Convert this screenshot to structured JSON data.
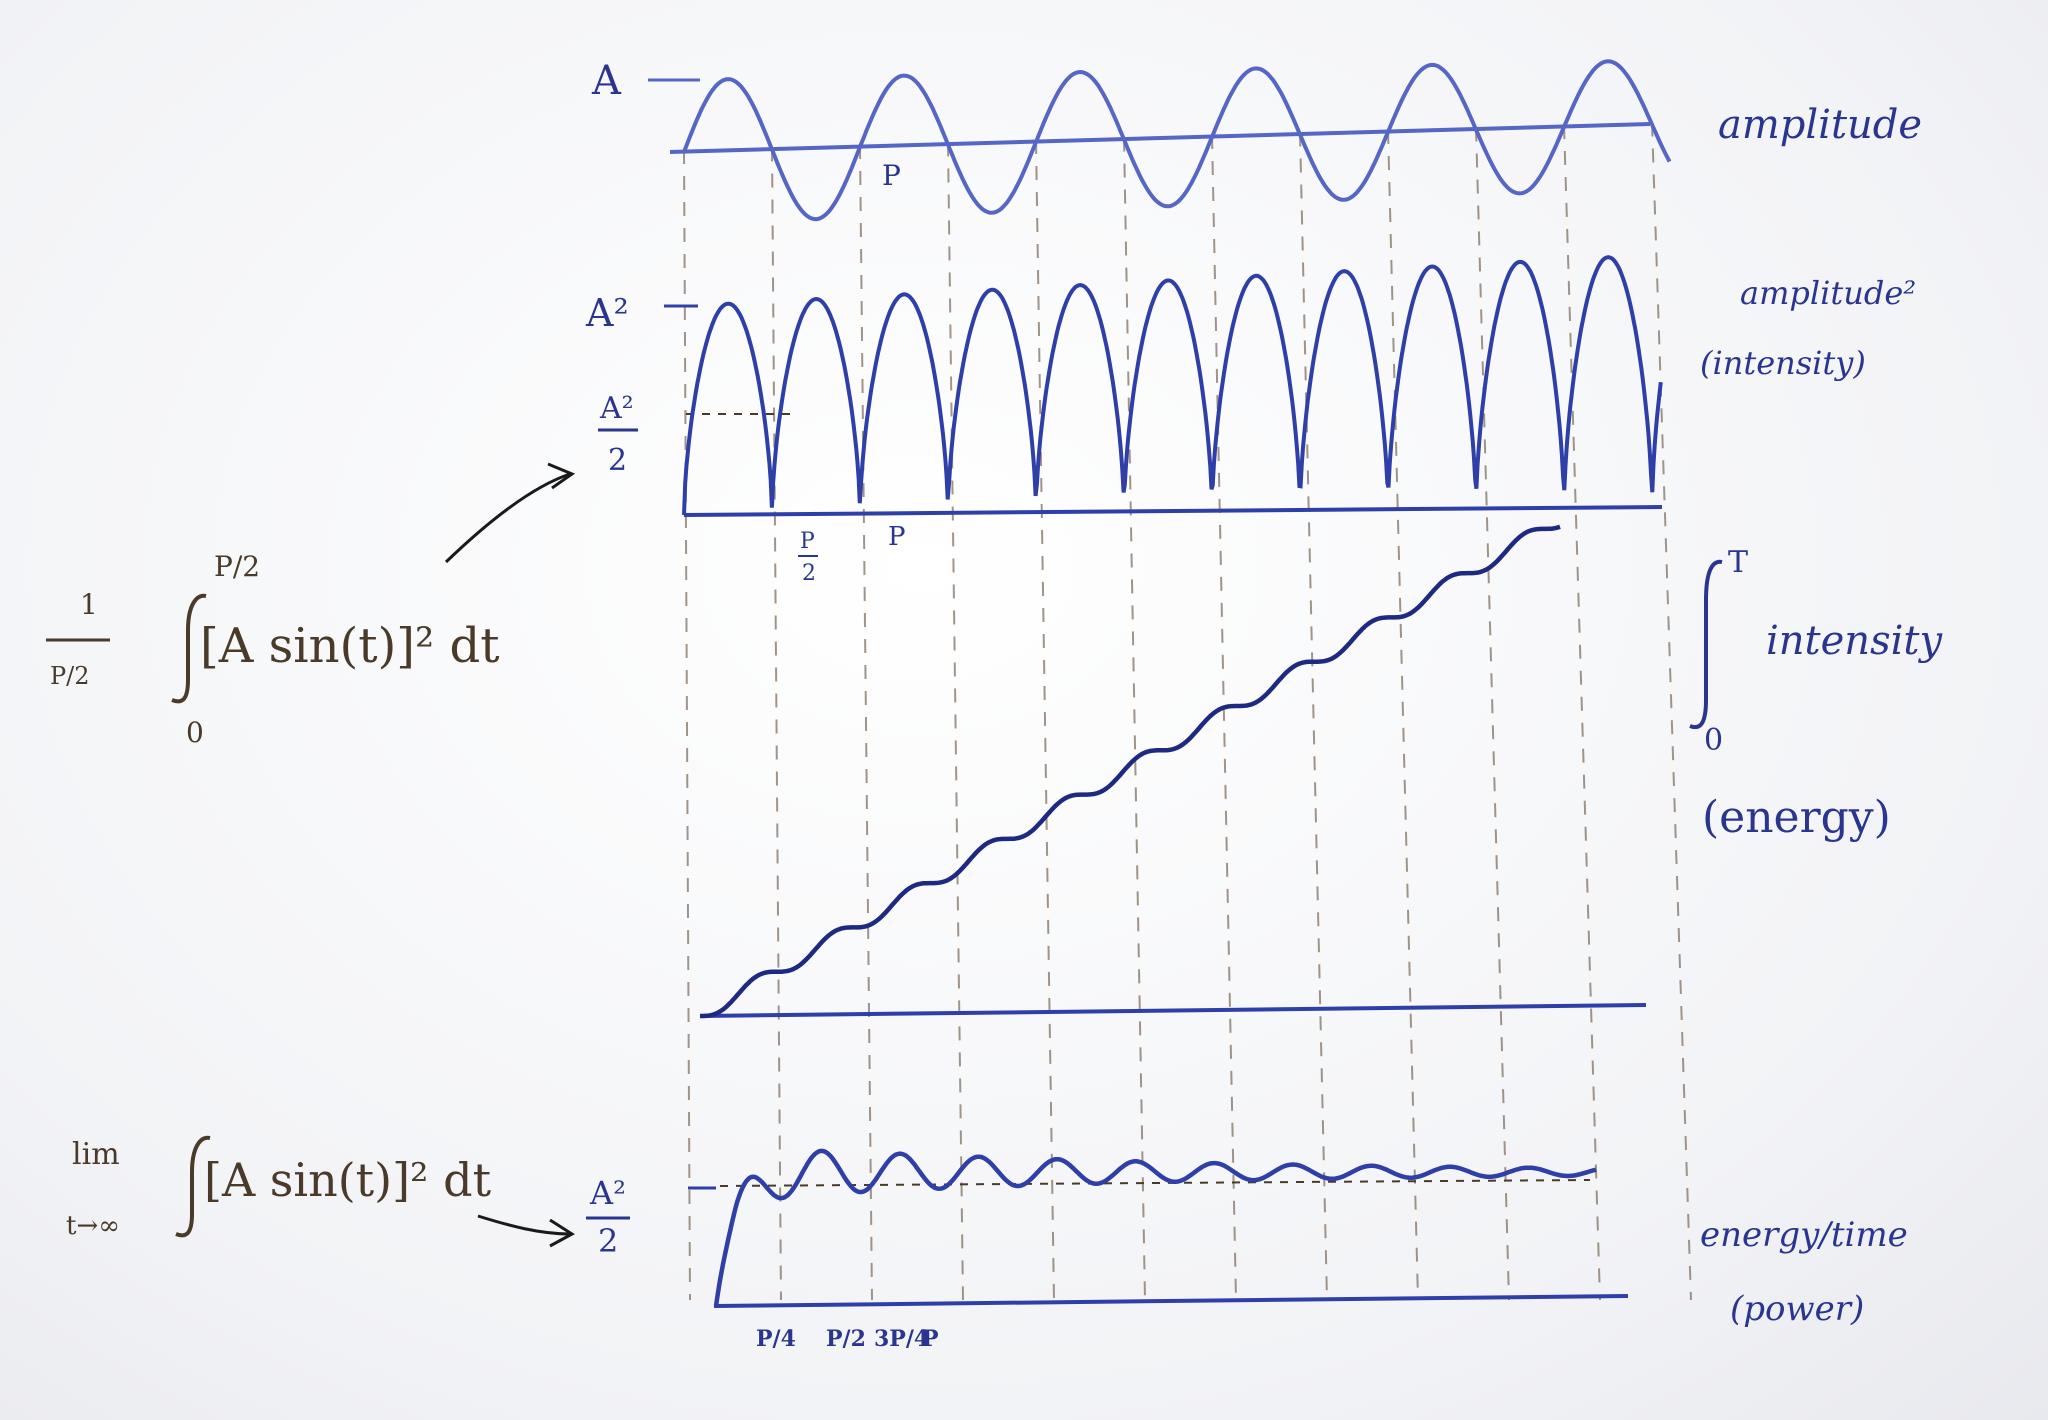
{
  "colors": {
    "ink_blue": "#2f3fa8",
    "ink_blue_light": "#5566c4",
    "ink_brown": "#4a3a2a",
    "ink_dashed": "#8a7a6a",
    "board": "#ffffff"
  },
  "panels": {
    "amplitude": {
      "label": "amplitude",
      "axis_label": "A",
      "tick_label": "P"
    },
    "intensity": {
      "label_line1": "amplitude²",
      "label_line2": "(intensity)",
      "axis_label_top": "A²",
      "axis_label_half_num": "A²",
      "axis_label_half_den": "2",
      "tick_p2_num": "P",
      "tick_p2_den": "2",
      "tick_p": "P"
    },
    "energy": {
      "integral_upper": "T",
      "integral_lower": "0",
      "label_integrand": "intensity",
      "label_paren": "(energy)"
    },
    "power": {
      "label_line1": "energy/time",
      "label_line2": "(power)",
      "level_num": "A²",
      "level_den": "2",
      "ticks": [
        "P/4",
        "P/2",
        "3P/4",
        "P"
      ]
    }
  },
  "formulas": {
    "mean_intensity": {
      "prefactor_num": "1",
      "prefactor_den": "P/2",
      "upper": "P/2",
      "lower": "0",
      "integrand": "[A sin(t)]² dt"
    },
    "limit_power": {
      "lim": "lim",
      "sub": "t→∞",
      "integrand": "[A sin(t)]² dt"
    }
  }
}
